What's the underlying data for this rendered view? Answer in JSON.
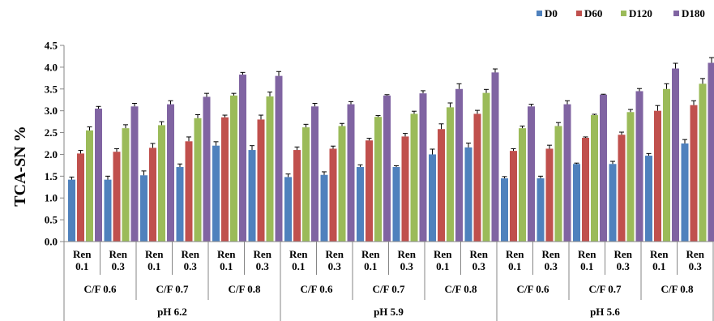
{
  "chart_data": {
    "type": "bar",
    "title": "",
    "ylabel": "TCA-SN %",
    "xlabel": "",
    "ylim": [
      0,
      4.5
    ],
    "yticks": [
      "0.0",
      "0.5",
      "1.0",
      "1.5",
      "2.0",
      "2.5",
      "3.0",
      "3.5",
      "4.0",
      "4.5"
    ],
    "legend_position": "top-right",
    "grid": false,
    "categories": [
      {
        "ren": [
          "Ren",
          "0.1"
        ],
        "cf": "C/F 0.6",
        "ph": "pH 6.2"
      },
      {
        "ren": [
          "Ren",
          "0.3"
        ],
        "cf": "C/F 0.6",
        "ph": "pH 6.2"
      },
      {
        "ren": [
          "Ren",
          "0.1"
        ],
        "cf": "C/F 0.7",
        "ph": "pH 6.2"
      },
      {
        "ren": [
          "Ren",
          "0.3"
        ],
        "cf": "C/F 0.7",
        "ph": "pH 6.2"
      },
      {
        "ren": [
          "Ren",
          "0.1"
        ],
        "cf": "C/F 0.8",
        "ph": "pH 6.2"
      },
      {
        "ren": [
          "Ren",
          "0.3"
        ],
        "cf": "C/F 0.8",
        "ph": "pH 6.2"
      },
      {
        "ren": [
          "Ren",
          "0.1"
        ],
        "cf": "C/F 0.6",
        "ph": "pH 5.9"
      },
      {
        "ren": [
          "Ren",
          "0.3"
        ],
        "cf": "C/F 0.6",
        "ph": "pH 5.9"
      },
      {
        "ren": [
          "Ren",
          "0.1"
        ],
        "cf": "C/F 0.7",
        "ph": "pH 5.9"
      },
      {
        "ren": [
          "Ren",
          "0.3"
        ],
        "cf": "C/F 0.7",
        "ph": "pH 5.9"
      },
      {
        "ren": [
          "Ren",
          "0.1"
        ],
        "cf": "C/F 0.8",
        "ph": "pH 5.9"
      },
      {
        "ren": [
          "Ren",
          "0.3"
        ],
        "cf": "C/F 0.8",
        "ph": "pH 5.9"
      },
      {
        "ren": [
          "Ren",
          "0.1"
        ],
        "cf": "C/F 0.6",
        "ph": "pH 5.6"
      },
      {
        "ren": [
          "Ren",
          "0.3"
        ],
        "cf": "C/F 0.6",
        "ph": "pH 5.6"
      },
      {
        "ren": [
          "Ren",
          "0.1"
        ],
        "cf": "C/F 0.7",
        "ph": "pH 5.6"
      },
      {
        "ren": [
          "Ren",
          "0.3"
        ],
        "cf": "C/F 0.7",
        "ph": "pH 5.6"
      },
      {
        "ren": [
          "Ren",
          "0.1"
        ],
        "cf": "C/F 0.8",
        "ph": "pH 5.6"
      },
      {
        "ren": [
          "Ren",
          "0.3"
        ],
        "cf": "C/F 0.8",
        "ph": "pH 5.6"
      }
    ],
    "cf_groups": [
      "C/F 0.6",
      "C/F 0.7",
      "C/F 0.8",
      "C/F 0.6",
      "C/F 0.7",
      "C/F 0.8",
      "C/F 0.6",
      "C/F 0.7",
      "C/F 0.8"
    ],
    "ph_groups": [
      "pH 6.2",
      "pH 5.9",
      "pH 5.6"
    ],
    "series": [
      {
        "name": "D0",
        "color": "#4f81bd",
        "values": [
          1.42,
          1.42,
          1.52,
          1.71,
          2.2,
          2.1,
          1.48,
          1.53,
          1.71,
          1.71,
          2.0,
          2.16,
          1.45,
          1.45,
          1.78,
          1.78,
          1.97,
          2.25
        ],
        "errors": [
          0.06,
          0.08,
          0.1,
          0.07,
          0.09,
          0.1,
          0.07,
          0.07,
          0.05,
          0.03,
          0.12,
          0.1,
          0.04,
          0.05,
          0.02,
          0.06,
          0.05,
          0.09
        ]
      },
      {
        "name": "D60",
        "color": "#c0504d",
        "values": [
          2.02,
          2.06,
          2.15,
          2.3,
          2.85,
          2.8,
          2.1,
          2.13,
          2.32,
          2.41,
          2.58,
          2.93,
          2.08,
          2.13,
          2.38,
          2.45,
          3.0,
          3.13
        ],
        "errors": [
          0.07,
          0.07,
          0.1,
          0.1,
          0.05,
          0.1,
          0.07,
          0.06,
          0.05,
          0.07,
          0.12,
          0.08,
          0.05,
          0.08,
          0.02,
          0.06,
          0.12,
          0.1
        ]
      },
      {
        "name": "D120",
        "color": "#9bbb59",
        "values": [
          2.55,
          2.6,
          2.67,
          2.83,
          3.35,
          3.33,
          2.62,
          2.65,
          2.86,
          2.93,
          3.08,
          3.41,
          2.6,
          2.65,
          2.9,
          2.97,
          3.5,
          3.62
        ],
        "errors": [
          0.08,
          0.08,
          0.08,
          0.08,
          0.05,
          0.1,
          0.07,
          0.06,
          0.03,
          0.06,
          0.1,
          0.08,
          0.05,
          0.08,
          0.02,
          0.06,
          0.12,
          0.12
        ]
      },
      {
        "name": "D180",
        "color": "#8064a2",
        "values": [
          3.05,
          3.1,
          3.15,
          3.32,
          3.83,
          3.8,
          3.1,
          3.15,
          3.35,
          3.4,
          3.5,
          3.88,
          3.1,
          3.15,
          3.37,
          3.45,
          3.97,
          4.1
        ],
        "errors": [
          0.05,
          0.07,
          0.08,
          0.08,
          0.05,
          0.1,
          0.07,
          0.06,
          0.02,
          0.06,
          0.12,
          0.08,
          0.05,
          0.08,
          0.01,
          0.06,
          0.12,
          0.12
        ]
      }
    ]
  }
}
